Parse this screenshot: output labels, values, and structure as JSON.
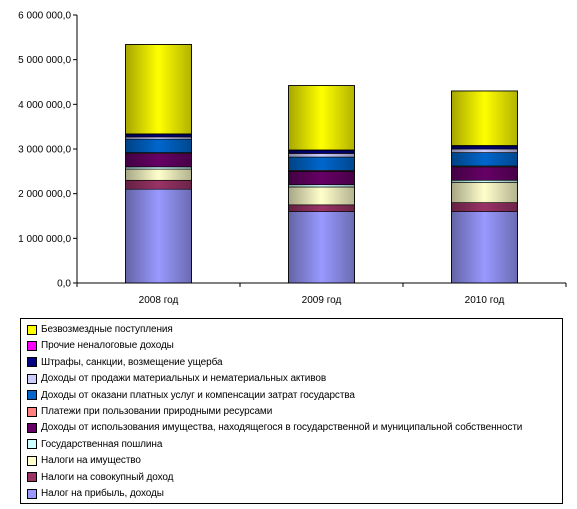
{
  "chart_data": {
    "type": "bar",
    "stacked": true,
    "categories": [
      "2008 год",
      "2009 год",
      "2010 год"
    ],
    "ylim": [
      0,
      6000000
    ],
    "yticks": [
      0,
      1000000,
      2000000,
      3000000,
      4000000,
      5000000,
      6000000
    ],
    "ytick_labels": [
      "0,0",
      "1 000 000,0",
      "2 000 000,0",
      "3 000 000,0",
      "4 000 000,0",
      "5 000 000,0",
      "6 000 000,0"
    ],
    "grid": false,
    "legend_position": "bottom",
    "series": [
      {
        "name": "Налог на прибыль, доходы",
        "color": "#9999ff",
        "values": [
          2100000,
          1600000,
          1600000
        ]
      },
      {
        "name": "Налоги на совокупный доход",
        "color": "#993366",
        "values": [
          200000,
          150000,
          200000
        ]
      },
      {
        "name": "Налоги на имущество",
        "color": "#ffffcc",
        "values": [
          250000,
          400000,
          450000
        ]
      },
      {
        "name": "Государственная пошлина",
        "color": "#ccffff",
        "values": [
          50000,
          50000,
          50000
        ]
      },
      {
        "name": "Доходы от использования имущества, находящегося в государственной и муниципальной собственности",
        "color": "#660066",
        "values": [
          300000,
          300000,
          300000
        ]
      },
      {
        "name": "Платежи при пользовании природными ресурсами",
        "color": "#ff8080",
        "values": [
          20000,
          20000,
          20000
        ]
      },
      {
        "name": "Доходы от оказани платных услуг и компенсации затрат государства",
        "color": "#0066cc",
        "values": [
          300000,
          300000,
          300000
        ]
      },
      {
        "name": "Доходы от продажи материальных и нематериальных активов",
        "color": "#ccccff",
        "values": [
          50000,
          80000,
          80000
        ]
      },
      {
        "name": "Штрафы, санкции, возмещение ущерба",
        "color": "#000080",
        "values": [
          60000,
          70000,
          70000
        ]
      },
      {
        "name": "Прочие неналоговые доходы",
        "color": "#ff00ff",
        "values": [
          10000,
          10000,
          10000
        ]
      },
      {
        "name": "Безвозмездные поступления",
        "color": "#ffff00",
        "values": [
          2000000,
          1440000,
          1220000
        ]
      }
    ]
  }
}
